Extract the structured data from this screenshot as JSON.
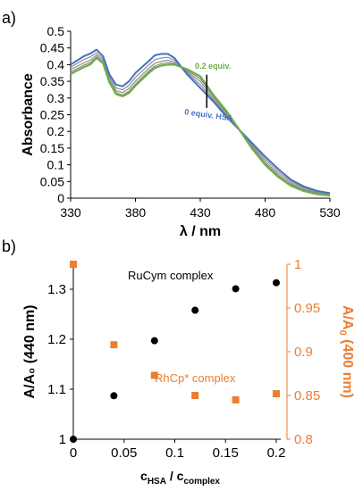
{
  "panels": {
    "a_label": "a)",
    "b_label": "b)"
  },
  "colors": {
    "blue": "#4472c4",
    "green": "#70ad47",
    "gray": "#8c8c8c",
    "black": "#000000",
    "orange": "#ed7d31"
  },
  "chart_data": [
    {
      "type": "line",
      "panel": "a",
      "xlabel": "λ /  nm",
      "ylabel": "Absorbance",
      "xlim": [
        330,
        530
      ],
      "ylim": [
        0,
        0.5
      ],
      "xticks": [
        330,
        380,
        430,
        480,
        530
      ],
      "yticks": [
        0,
        0.05,
        0.1,
        0.15,
        0.2,
        0.25,
        0.3,
        0.35,
        0.4,
        0.45,
        0.5
      ],
      "x": [
        330,
        340,
        345,
        350,
        355,
        360,
        365,
        370,
        375,
        380,
        390,
        395,
        400,
        405,
        410,
        420,
        430,
        440,
        450,
        460,
        470,
        480,
        490,
        500,
        510,
        520,
        530
      ],
      "series": [
        {
          "name": "0 equiv. HSA",
          "values": [
            0.4,
            0.425,
            0.433,
            0.445,
            0.425,
            0.37,
            0.34,
            0.335,
            0.35,
            0.375,
            0.41,
            0.428,
            0.432,
            0.432,
            0.42,
            0.37,
            0.33,
            0.29,
            0.245,
            0.205,
            0.165,
            0.125,
            0.088,
            0.055,
            0.035,
            0.022,
            0.015
          ]
        },
        {
          "values": [
            0.392,
            0.415,
            0.423,
            0.435,
            0.418,
            0.362,
            0.33,
            0.325,
            0.338,
            0.362,
            0.398,
            0.415,
            0.42,
            0.422,
            0.413,
            0.375,
            0.34,
            0.296,
            0.25,
            0.205,
            0.16,
            0.117,
            0.08,
            0.05,
            0.031,
            0.019,
            0.013
          ]
        },
        {
          "values": [
            0.385,
            0.405,
            0.413,
            0.428,
            0.412,
            0.355,
            0.322,
            0.316,
            0.328,
            0.35,
            0.388,
            0.404,
            0.41,
            0.413,
            0.407,
            0.378,
            0.35,
            0.302,
            0.255,
            0.206,
            0.156,
            0.11,
            0.073,
            0.045,
            0.027,
            0.016,
            0.011
          ]
        },
        {
          "values": [
            0.378,
            0.398,
            0.406,
            0.423,
            0.407,
            0.35,
            0.316,
            0.309,
            0.32,
            0.342,
            0.38,
            0.396,
            0.403,
            0.406,
            0.403,
            0.382,
            0.358,
            0.307,
            0.259,
            0.206,
            0.152,
            0.104,
            0.068,
            0.041,
            0.024,
            0.014,
            0.009
          ]
        },
        {
          "name": "0.2 equiv.",
          "values": [
            0.372,
            0.392,
            0.4,
            0.42,
            0.404,
            0.346,
            0.312,
            0.305,
            0.315,
            0.337,
            0.374,
            0.39,
            0.397,
            0.4,
            0.4,
            0.386,
            0.365,
            0.31,
            0.262,
            0.206,
            0.148,
            0.1,
            0.064,
            0.037,
            0.021,
            0.012,
            0.008
          ]
        }
      ],
      "annotations": {
        "top": "0.2 equiv.",
        "bottom": "0 equiv. HSA",
        "arrow_x": 435,
        "arrow_range": [
          0.27,
          0.37
        ]
      }
    },
    {
      "type": "scatter",
      "panel": "b",
      "xlabel_main": "c",
      "xlabel_sub1": "HSA",
      "xlabel_mid": " / c",
      "xlabel_sub2": "complex",
      "ylabel_left": "A/A₀ (440 nm)",
      "ylabel_right_pre": "A/A",
      "ylabel_right_sub": "0",
      "ylabel_right_post": " (400 nm)",
      "xlim": [
        0,
        0.2
      ],
      "ylim_left": [
        1,
        1.35
      ],
      "ylim_right": [
        0.8,
        1.0
      ],
      "xticks": [
        "0",
        "0.05",
        "0.1",
        "0.15",
        "0.2"
      ],
      "xtick_values": [
        0,
        0.05,
        0.1,
        0.15,
        0.2
      ],
      "yticks_left": [
        "1",
        "1.1",
        "1.2",
        "1.3"
      ],
      "ytick_left_values": [
        1,
        1.1,
        1.2,
        1.3
      ],
      "yticks_right": [
        "0.8",
        "0.85",
        "0.9",
        "0.95",
        "1"
      ],
      "ytick_right_values": [
        0.8,
        0.85,
        0.9,
        0.95,
        1.0
      ],
      "series": [
        {
          "name": "RuCym complex",
          "axis": "left",
          "x": [
            0,
            0.04,
            0.08,
            0.12,
            0.16,
            0.2
          ],
          "values": [
            1.0,
            1.087,
            1.197,
            1.258,
            1.301,
            1.313
          ]
        },
        {
          "name": "RhCp* complex",
          "axis": "right",
          "x": [
            0,
            0.04,
            0.08,
            0.12,
            0.16,
            0.2
          ],
          "values": [
            1.0,
            0.908,
            0.873,
            0.85,
            0.845,
            0.852
          ]
        }
      ]
    }
  ]
}
